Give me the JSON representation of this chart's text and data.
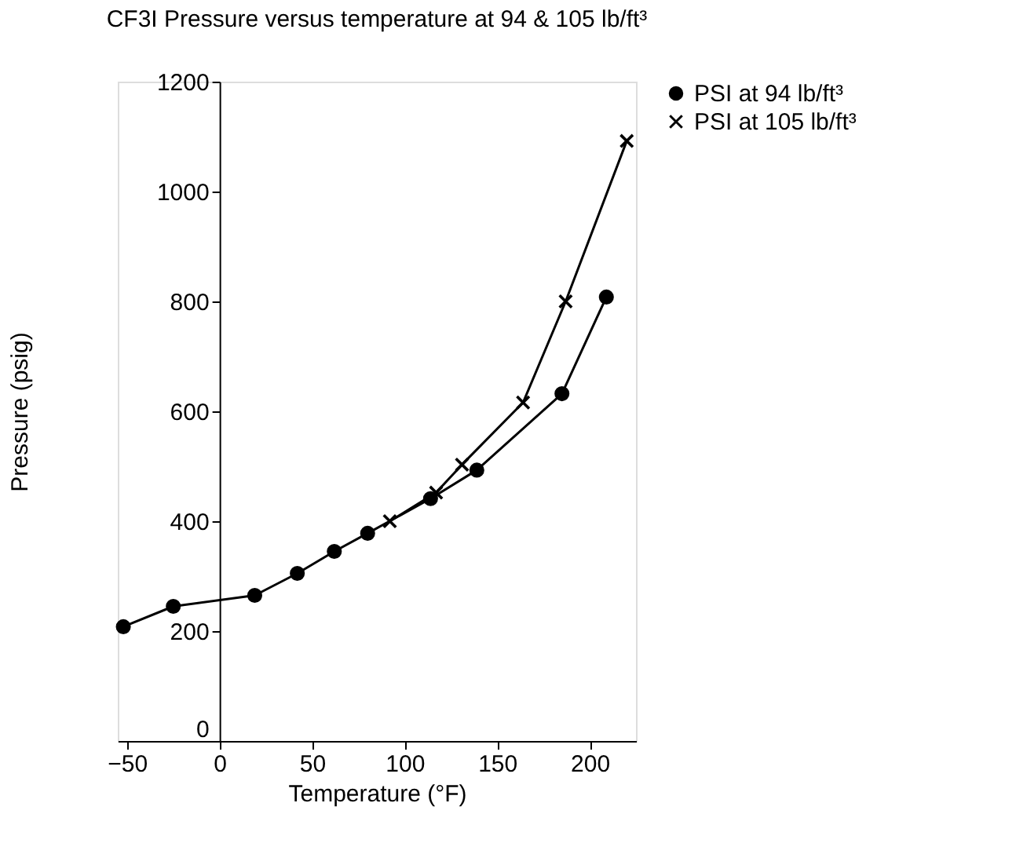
{
  "chart_data": {
    "type": "line",
    "title": "CF3I Pressure versus temperature at 94 & 105 lb/ft³",
    "xlabel": "Temperature (°F)",
    "ylabel": "Pressure (psig)",
    "xlim": [
      -55,
      225
    ],
    "xticks": [
      -50,
      0,
      50,
      100,
      150,
      200
    ],
    "ylim": [
      0,
      1200
    ],
    "yticks": [
      0,
      200,
      400,
      600,
      800,
      1000,
      1200
    ],
    "grid": false,
    "legend": "right",
    "line_style": "solid",
    "series": [
      {
        "name": "PSI at 94 lb/ft³",
        "color": "#000000",
        "marker": "circle",
        "x": [
          -52,
          -25,
          19,
          42,
          62,
          80,
          114,
          139,
          185,
          209
        ],
        "values": [
          208,
          245,
          265,
          305,
          345,
          378,
          441,
          493,
          632,
          808
        ]
      },
      {
        "name": "PSI at 105 lb/ft³",
        "color": "#000000",
        "marker": "cross",
        "x": [
          92,
          117,
          131,
          164,
          187,
          220
        ],
        "values": [
          400,
          452,
          503,
          616,
          800,
          1092
        ]
      }
    ]
  }
}
